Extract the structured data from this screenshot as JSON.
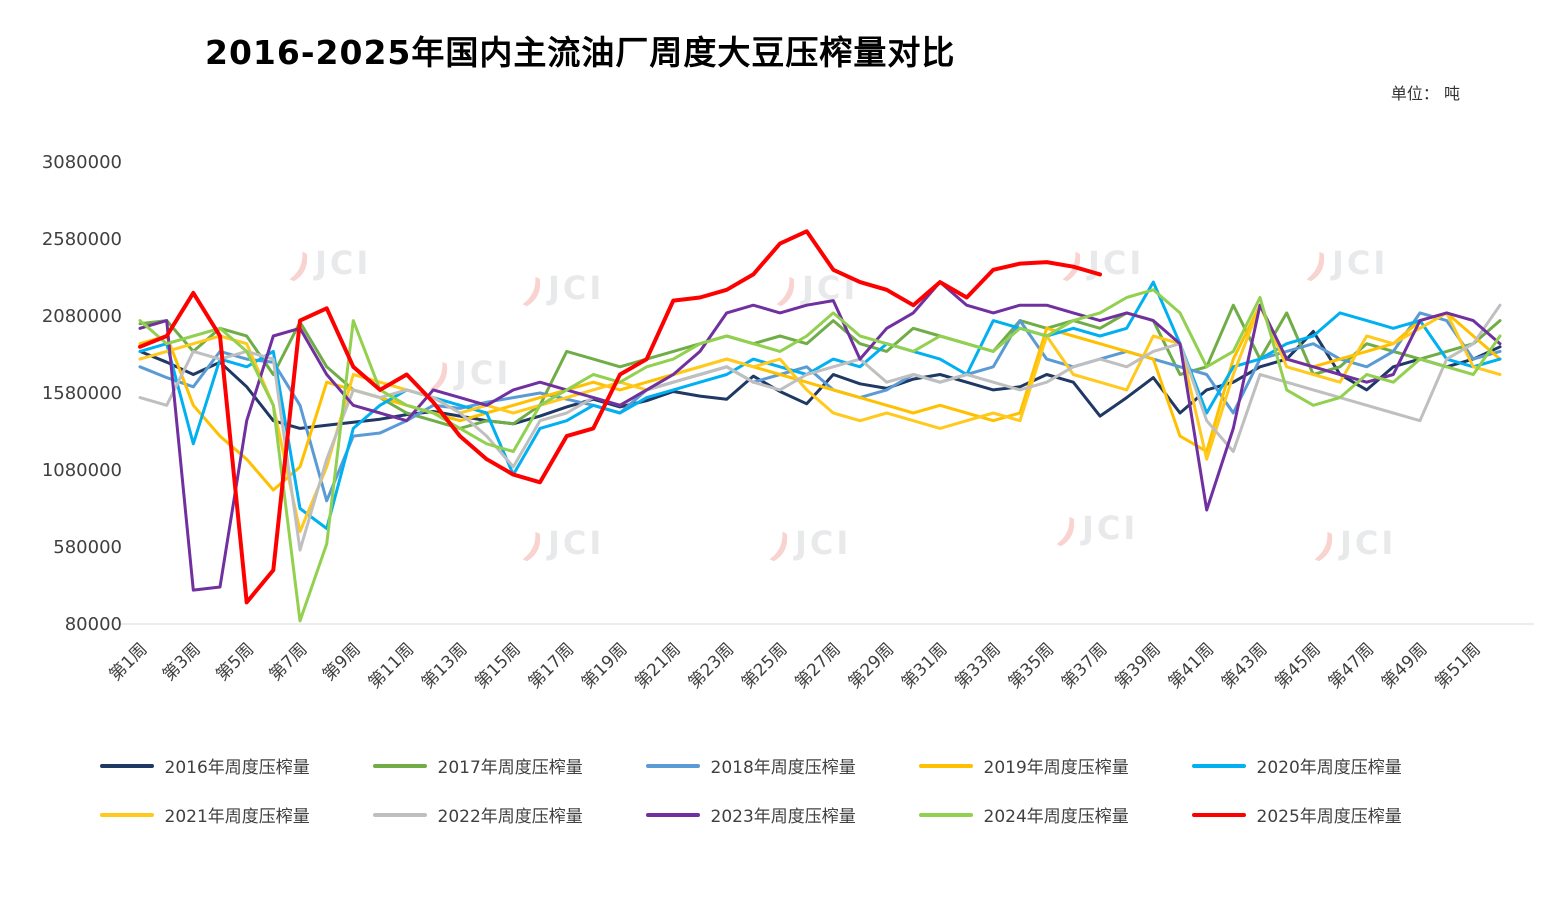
{
  "chart_data": {
    "type": "line",
    "title": "2016-2025年国内主流油厂周度大豆压榨量对比",
    "unit_label": "单位： 吨",
    "watermark_text": "JCI",
    "xlabel": "",
    "ylabel": "",
    "grid": false,
    "legend_position": "bottom",
    "ylim": [
      80000,
      3080000
    ],
    "yticks": [
      80000,
      580000,
      1080000,
      1580000,
      2080000,
      2580000,
      3080000
    ],
    "x_tick_step": 2,
    "categories": [
      "第1周",
      "第2周",
      "第3周",
      "第4周",
      "第5周",
      "第6周",
      "第7周",
      "第8周",
      "第9周",
      "第10周",
      "第11周",
      "第12周",
      "第13周",
      "第14周",
      "第15周",
      "第16周",
      "第17周",
      "第18周",
      "第19周",
      "第20周",
      "第21周",
      "第22周",
      "第23周",
      "第24周",
      "第25周",
      "第26周",
      "第27周",
      "第28周",
      "第29周",
      "第30周",
      "第31周",
      "第32周",
      "第33周",
      "第34周",
      "第35周",
      "第36周",
      "第37周",
      "第38周",
      "第39周",
      "第40周",
      "第41周",
      "第42周",
      "第43周",
      "第44周",
      "第45周",
      "第46周",
      "第47周",
      "第48周",
      "第49周",
      "第50周",
      "第51周",
      "第52周"
    ],
    "series": [
      {
        "name": "2016",
        "label": "2016年周度压榨量",
        "color": "#1F3864",
        "stroke_width": 3,
        "values": [
          1850000,
          1780000,
          1700000,
          1780000,
          1620000,
          1400000,
          1350000,
          1370000,
          1390000,
          1410000,
          1440000,
          1460000,
          1430000,
          1400000,
          1380000,
          1430000,
          1490000,
          1540000,
          1490000,
          1530000,
          1590000,
          1560000,
          1540000,
          1690000,
          1590000,
          1510000,
          1700000,
          1640000,
          1610000,
          1670000,
          1700000,
          1650000,
          1600000,
          1620000,
          1700000,
          1650000,
          1430000,
          1550000,
          1680000,
          1450000,
          1600000,
          1650000,
          1750000,
          1800000,
          1980000,
          1700000,
          1600000,
          1750000,
          1800000,
          1750000,
          1800000,
          1880000
        ]
      },
      {
        "name": "2017",
        "label": "2017年周度压榨量",
        "color": "#70AD47",
        "stroke_width": 3,
        "values": [
          2030000,
          2050000,
          1850000,
          2000000,
          1950000,
          1700000,
          2040000,
          1750000,
          1600000,
          1550000,
          1450000,
          1400000,
          1350000,
          1400000,
          1380000,
          1500000,
          1850000,
          1800000,
          1750000,
          1800000,
          1850000,
          1900000,
          1950000,
          1900000,
          1950000,
          1900000,
          2050000,
          1900000,
          1850000,
          2000000,
          1950000,
          1900000,
          1850000,
          2050000,
          2000000,
          2050000,
          2000000,
          2100000,
          2050000,
          1700000,
          1750000,
          2150000,
          1800000,
          2100000,
          1700000,
          1750000,
          1900000,
          1850000,
          1800000,
          1850000,
          1900000,
          2050000
        ]
      },
      {
        "name": "2018",
        "label": "2018年周度压榨量",
        "color": "#5B9BD5",
        "stroke_width": 3,
        "values": [
          1750000,
          1680000,
          1620000,
          1850000,
          1800000,
          1780000,
          1500000,
          880000,
          1300000,
          1320000,
          1400000,
          1500000,
          1480000,
          1520000,
          1550000,
          1580000,
          1540000,
          1500000,
          1450000,
          1600000,
          1650000,
          1700000,
          1750000,
          1650000,
          1700000,
          1750000,
          1600000,
          1550000,
          1600000,
          1700000,
          1650000,
          1700000,
          1750000,
          2050000,
          1800000,
          1750000,
          1800000,
          1850000,
          1800000,
          1750000,
          1700000,
          1450000,
          1800000,
          1850000,
          1900000,
          1800000,
          1750000,
          1850000,
          2100000,
          2050000,
          1800000,
          1850000
        ]
      },
      {
        "name": "2019",
        "label": "2019年周度压榨量",
        "color": "#FFC000",
        "stroke_width": 3,
        "values": [
          1900000,
          1950000,
          1500000,
          1300000,
          1150000,
          950000,
          1100000,
          1650000,
          1600000,
          1550000,
          1500000,
          1450000,
          1400000,
          1450000,
          1500000,
          1550000,
          1600000,
          1650000,
          1600000,
          1650000,
          1700000,
          1750000,
          1800000,
          1750000,
          1700000,
          1650000,
          1600000,
          1550000,
          1500000,
          1450000,
          1500000,
          1450000,
          1400000,
          1450000,
          2000000,
          1950000,
          1900000,
          1850000,
          1800000,
          1300000,
          1200000,
          1800000,
          2150000,
          1800000,
          1750000,
          1800000,
          1850000,
          1900000,
          2050000,
          2100000,
          1950000,
          1800000
        ]
      },
      {
        "name": "2020",
        "label": "2020年周度压榨量",
        "color": "#00B0F0",
        "stroke_width": 3,
        "values": [
          1850000,
          1900000,
          1250000,
          1800000,
          1750000,
          1850000,
          830000,
          700000,
          1350000,
          1500000,
          1600000,
          1550000,
          1500000,
          1450000,
          1050000,
          1350000,
          1400000,
          1500000,
          1450000,
          1550000,
          1600000,
          1650000,
          1700000,
          1800000,
          1750000,
          1700000,
          1800000,
          1750000,
          1900000,
          1850000,
          1800000,
          1700000,
          2050000,
          2000000,
          1950000,
          2000000,
          1950000,
          2000000,
          2300000,
          1900000,
          1450000,
          1750000,
          1800000,
          1900000,
          1950000,
          2100000,
          2050000,
          2000000,
          2050000,
          1800000,
          1750000,
          1800000
        ]
      },
      {
        "name": "2021",
        "label": "2021年周度压榨量",
        "color": "#FFC91E",
        "stroke_width": 3,
        "values": [
          1800000,
          1850000,
          1900000,
          1950000,
          1900000,
          1500000,
          680000,
          1100000,
          1700000,
          1650000,
          1600000,
          1550000,
          1450000,
          1500000,
          1450000,
          1500000,
          1550000,
          1600000,
          1650000,
          1600000,
          1700000,
          1750000,
          1800000,
          1750000,
          1800000,
          1600000,
          1450000,
          1400000,
          1450000,
          1400000,
          1350000,
          1400000,
          1450000,
          1400000,
          1950000,
          1700000,
          1650000,
          1600000,
          1950000,
          1900000,
          1150000,
          1700000,
          2150000,
          1750000,
          1700000,
          1650000,
          1950000,
          1900000,
          2000000,
          2100000,
          1750000,
          1700000
        ]
      },
      {
        "name": "2022",
        "label": "2022年周度压榨量",
        "color": "#BFBFBF",
        "stroke_width": 3,
        "values": [
          1550000,
          1500000,
          1850000,
          1800000,
          1850000,
          1800000,
          560000,
          1150000,
          1600000,
          1550000,
          1600000,
          1550000,
          1450000,
          1300000,
          1100000,
          1400000,
          1450000,
          1550000,
          1500000,
          1600000,
          1650000,
          1700000,
          1750000,
          1650000,
          1600000,
          1700000,
          1750000,
          1800000,
          1650000,
          1700000,
          1650000,
          1700000,
          1650000,
          1600000,
          1650000,
          1750000,
          1800000,
          1750000,
          1850000,
          1900000,
          1400000,
          1200000,
          1700000,
          1650000,
          1600000,
          1550000,
          1500000,
          1450000,
          1400000,
          1800000,
          1900000,
          2150000
        ]
      },
      {
        "name": "2023",
        "label": "2023年周度压榨量",
        "color": "#7030A0",
        "stroke_width": 3,
        "values": [
          2000000,
          2050000,
          300000,
          320000,
          1400000,
          1950000,
          2000000,
          1700000,
          1500000,
          1450000,
          1400000,
          1600000,
          1550000,
          1500000,
          1600000,
          1650000,
          1600000,
          1550000,
          1500000,
          1600000,
          1700000,
          1850000,
          2100000,
          2150000,
          2100000,
          2150000,
          2180000,
          1800000,
          2000000,
          2100000,
          2300000,
          2150000,
          2100000,
          2150000,
          2150000,
          2100000,
          2050000,
          2100000,
          2050000,
          1900000,
          820000,
          1350000,
          2150000,
          1800000,
          1750000,
          1700000,
          1650000,
          1700000,
          2050000,
          2100000,
          2050000,
          1900000
        ]
      },
      {
        "name": "2024",
        "label": "2024年周度压榨量",
        "color": "#92D050",
        "stroke_width": 3,
        "values": [
          2050000,
          1900000,
          1950000,
          2000000,
          1850000,
          1500000,
          100000,
          600000,
          2050000,
          1600000,
          1500000,
          1450000,
          1350000,
          1250000,
          1200000,
          1500000,
          1600000,
          1700000,
          1650000,
          1750000,
          1800000,
          1900000,
          1950000,
          1900000,
          1850000,
          1950000,
          2100000,
          1950000,
          1900000,
          1850000,
          1950000,
          1900000,
          1850000,
          2000000,
          1950000,
          2050000,
          2100000,
          2200000,
          2250000,
          2100000,
          1750000,
          1850000,
          2200000,
          1600000,
          1500000,
          1550000,
          1700000,
          1650000,
          1800000,
          1750000,
          1700000,
          1950000
        ]
      },
      {
        "name": "2025",
        "label": "2025年周度压榨量",
        "color": "#FF0000",
        "stroke_width": 4,
        "values": [
          1880000,
          1950000,
          2230000,
          1950000,
          220000,
          430000,
          2050000,
          2130000,
          1750000,
          1600000,
          1700000,
          1520000,
          1300000,
          1150000,
          1050000,
          1000000,
          1300000,
          1350000,
          1700000,
          1800000,
          2180000,
          2200000,
          2250000,
          2350000,
          2550000,
          2630000,
          2380000,
          2300000,
          2250000,
          2150000,
          2300000,
          2200000,
          2380000,
          2420000,
          2430000,
          2400000,
          2350000,
          null,
          null,
          null,
          null,
          null,
          null,
          null,
          null,
          null,
          null,
          null,
          null,
          null,
          null,
          null
        ]
      }
    ]
  }
}
